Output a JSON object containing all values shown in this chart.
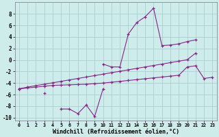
{
  "xlabel": "Windchill (Refroidissement éolien,°C)",
  "background_color": "#ceecea",
  "grid_color": "#aacece",
  "line_color": "#882288",
  "xlim": [
    -0.5,
    23.5
  ],
  "ylim": [
    -10.5,
    10.0
  ],
  "xticks": [
    0,
    1,
    2,
    3,
    4,
    5,
    6,
    7,
    8,
    9,
    10,
    11,
    12,
    13,
    14,
    15,
    16,
    17,
    18,
    19,
    20,
    21,
    22,
    23
  ],
  "yticks": [
    -10,
    -8,
    -6,
    -4,
    -2,
    0,
    2,
    4,
    6,
    8
  ],
  "series": [
    [
      null,
      null,
      null,
      null,
      null,
      null,
      null,
      null,
      null,
      null,
      -0.7,
      -1.2,
      -1.2,
      4.5,
      6.5,
      7.5,
      9.0,
      2.5,
      2.6,
      2.8,
      3.2,
      3.5,
      null,
      null
    ],
    [
      -5.0,
      null,
      null,
      -5.7,
      null,
      -8.5,
      -8.5,
      -9.3,
      -7.8,
      -9.8,
      -5.0,
      null,
      null,
      null,
      null,
      null,
      null,
      null,
      null,
      null,
      null,
      null,
      null,
      null
    ],
    [
      -5.0,
      -4.85,
      -4.7,
      -4.55,
      -4.4,
      -4.35,
      -4.3,
      -4.25,
      -4.2,
      -4.1,
      -4.0,
      -3.85,
      -3.7,
      -3.55,
      -3.4,
      -3.25,
      -3.1,
      -2.95,
      -2.8,
      -2.65,
      -1.2,
      -1.0,
      -3.2,
      -3.0
    ],
    [
      -5.0,
      -4.7,
      -4.45,
      -4.2,
      -3.95,
      -3.7,
      -3.45,
      -3.2,
      -2.95,
      -2.7,
      -2.45,
      -2.2,
      -1.95,
      -1.7,
      -1.45,
      -1.2,
      -0.95,
      -0.7,
      -0.45,
      -0.2,
      0.05,
      1.2,
      null,
      null
    ]
  ]
}
